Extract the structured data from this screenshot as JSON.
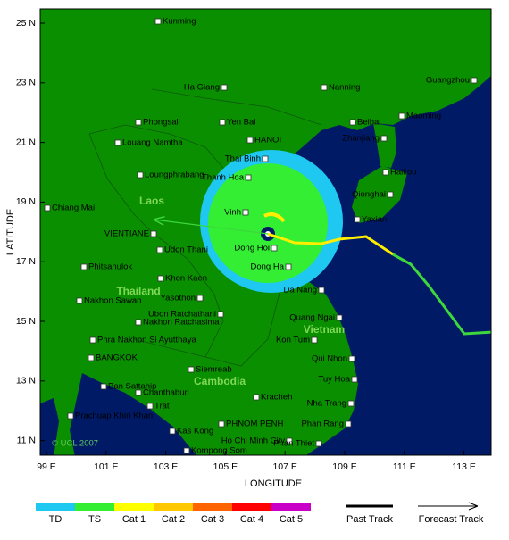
{
  "map": {
    "x_axis": {
      "label": "LONGITUDE",
      "ticks": [
        {
          "value": 99,
          "label": "99 E"
        },
        {
          "value": 101,
          "label": "101 E"
        },
        {
          "value": 103,
          "label": "103 E"
        },
        {
          "value": 105,
          "label": "105 E"
        },
        {
          "value": 107,
          "label": "107 E"
        },
        {
          "value": 109,
          "label": "109 E"
        },
        {
          "value": 111,
          "label": "111 E"
        },
        {
          "value": 113,
          "label": "113 E"
        }
      ]
    },
    "y_axis": {
      "label": "LATITUDE",
      "ticks": [
        {
          "value": 25,
          "label": "25 N"
        },
        {
          "value": 23,
          "label": "23 N"
        },
        {
          "value": 21,
          "label": "21 N"
        },
        {
          "value": 19,
          "label": "19 N"
        },
        {
          "value": 17,
          "label": "17 N"
        },
        {
          "value": 15,
          "label": "15 N"
        },
        {
          "value": 13,
          "label": "13 N"
        },
        {
          "value": 11,
          "label": "11 N"
        }
      ]
    },
    "cities": [
      "Kunming",
      "Ha Giang",
      "Nanning",
      "Guangzhou",
      "Phongsali",
      "Yen Bai",
      "Beihai",
      "Maoming",
      "Louang Namtha",
      "HANOI",
      "Zhanjiang",
      "Thai Binh",
      "Loungphrabang",
      "Haikou",
      "Thanh Hoa",
      "Qionghai",
      "Chiang Mai",
      "Vinh",
      "Yaxian",
      "VIENTIANE",
      "Udon Thani",
      "Dong Hoi",
      "Phitsanulok",
      "Dong Ha",
      "Khon Kaen",
      "Da Nang",
      "Yasothon",
      "Nakhon Sawan",
      "Ubon Ratchathani",
      "Quang Ngai",
      "Nakhon Ratchasima",
      "Kon Tum",
      "Phra Nakhon Si Ayutthaya",
      "BANGKOK",
      "Qui Nhon",
      "Siemreab",
      "Ban Sattahip",
      "Tuy Hoa",
      "Chanthaburi",
      "Kracheh",
      "Trat",
      "Nha Trang",
      "Prachuap Khiri Khan",
      "PHNOM PENH",
      "Phan Rang",
      "Kas Kong",
      "Ho Chi Minh City",
      "Phan Thiet",
      "Kompong Som"
    ],
    "countries": [
      "Laos",
      "Thailand",
      "Vietnam",
      "Cambodia"
    ],
    "copyright": "© UCL 2007"
  },
  "legend": {
    "intensity": [
      "TD",
      "TS",
      "Cat 1",
      "Cat 2",
      "Cat 3",
      "Cat 4",
      "Cat 5"
    ],
    "past_track": "Past Track",
    "forecast_track": "Forecast Track"
  }
}
